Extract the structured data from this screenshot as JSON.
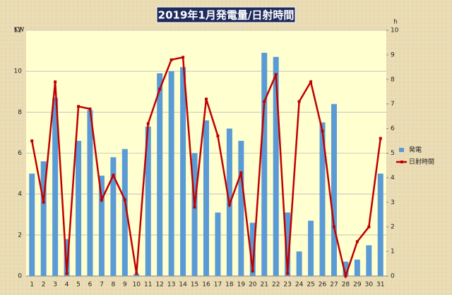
{
  "chart_data": {
    "type": "bar",
    "title": "2019年1月発電量/日射時間",
    "y_label": "KW",
    "y2_label": "h",
    "categories": [
      "1",
      "2",
      "3",
      "4",
      "5",
      "6",
      "7",
      "8",
      "9",
      "10",
      "11",
      "12",
      "13",
      "14",
      "15",
      "16",
      "17",
      "18",
      "19",
      "20",
      "21",
      "22",
      "23",
      "24",
      "25",
      "26",
      "27",
      "28",
      "29",
      "30",
      "31"
    ],
    "series": [
      {
        "name": "発電",
        "type": "bar",
        "color": "#5b9bd5",
        "values": [
          5.0,
          5.6,
          8.7,
          1.8,
          6.6,
          8.1,
          4.9,
          5.8,
          6.2,
          0.1,
          7.3,
          9.9,
          10.0,
          10.2,
          6.0,
          7.6,
          3.1,
          7.2,
          6.6,
          2.6,
          10.9,
          10.7,
          3.1,
          1.2,
          2.7,
          7.5,
          8.4,
          0.7,
          0.8,
          1.5,
          5.0
        ]
      },
      {
        "name": "日射時間",
        "type": "line",
        "axis": "y2",
        "color": "#c00000",
        "values": [
          5.5,
          3.0,
          7.9,
          0.1,
          6.9,
          6.8,
          3.1,
          4.1,
          3.1,
          0.1,
          6.2,
          7.6,
          8.8,
          8.9,
          2.8,
          7.2,
          5.7,
          2.9,
          4.2,
          0.2,
          7.1,
          8.2,
          0.1,
          7.1,
          7.9,
          5.9,
          2.0,
          0,
          1.4,
          2.0,
          5.6
        ]
      }
    ],
    "ylim": [
      0,
      12
    ],
    "yticks": [
      0,
      2,
      4,
      6,
      8,
      10,
      12
    ],
    "y2lim": [
      0,
      10
    ],
    "y2ticks": [
      0,
      1,
      2,
      3,
      4,
      5,
      6,
      7,
      8,
      9,
      10
    ],
    "grid": true,
    "legend": "right"
  }
}
